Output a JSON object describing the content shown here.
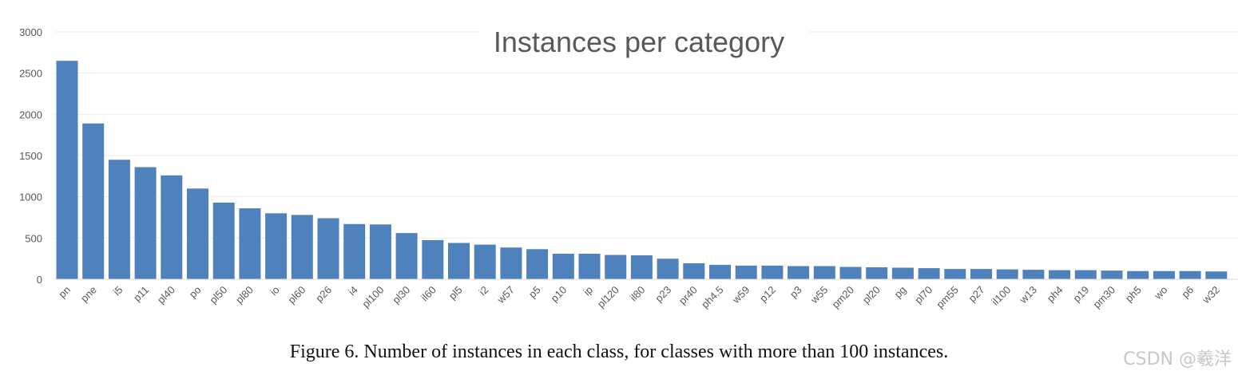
{
  "chart_data": {
    "type": "bar",
    "title": "Instances per category",
    "xlabel": "",
    "ylabel": "",
    "ylim": [
      0,
      3000
    ],
    "yticks": [
      0,
      500,
      1000,
      1500,
      2000,
      2500,
      3000
    ],
    "grid": true,
    "bar_color": "#4f81bd",
    "categories": [
      "pn",
      "pne",
      "i5",
      "p11",
      "pl40",
      "po",
      "pl50",
      "pl80",
      "io",
      "pl60",
      "p26",
      "i4",
      "pl100",
      "pl30",
      "il60",
      "pl5",
      "i2",
      "w57",
      "p5",
      "p10",
      "ip",
      "pl120",
      "il80",
      "p23",
      "pr40",
      "ph4.5",
      "w59",
      "p12",
      "p3",
      "w55",
      "pm20",
      "pl20",
      "pg",
      "pl70",
      "pm55",
      "p27",
      "il100",
      "w13",
      "ph4",
      "p19",
      "pm30",
      "ph5",
      "wo",
      "p6",
      "w32"
    ],
    "values": [
      2650,
      1890,
      1450,
      1360,
      1260,
      1100,
      930,
      860,
      800,
      780,
      740,
      670,
      665,
      560,
      475,
      440,
      420,
      385,
      365,
      310,
      310,
      295,
      290,
      250,
      195,
      175,
      165,
      165,
      160,
      160,
      150,
      145,
      140,
      135,
      125,
      125,
      120,
      115,
      110,
      110,
      105,
      100,
      100,
      100,
      95
    ]
  },
  "caption": "Figure 6. Number of instances in each class, for classes with more than 100 instances.",
  "watermark": "CSDN @羲洋"
}
